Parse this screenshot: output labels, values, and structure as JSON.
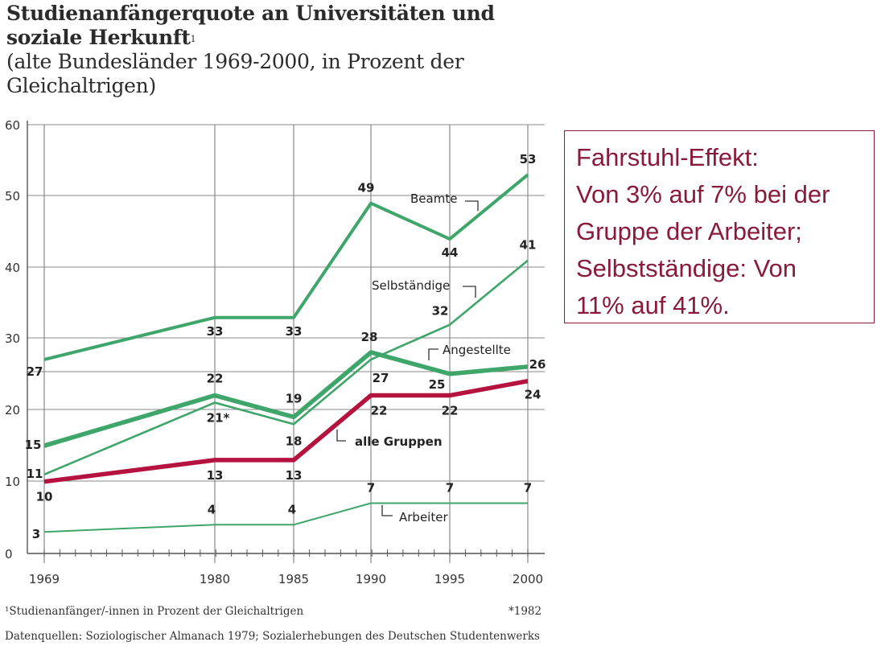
{
  "header": {
    "title_line1": "Studienanfängerquote an Universitäten und",
    "title_line2": "soziale Herkunft",
    "title_sup": "1",
    "subtitle_line1": "(alte Bundesländer 1969-2000, in Prozent der",
    "subtitle_line2": "Gleichaltrigen)"
  },
  "callout": {
    "lines": [
      "Fahrstuhl-Effekt:",
      "Von 3% auf 7% bei der",
      "Gruppe der Arbeiter;",
      "Selbstständige: Von",
      "11% auf 41%."
    ],
    "color": "#8b1a3a"
  },
  "footer": {
    "footnote": "¹Studienanfänger/-innen in Prozent der Gleichaltrigen",
    "star_note": "*1982",
    "source": "Datenquellen: Soziologischer Almanach 1979; Sozialerhebungen des Deutschen Studentenwerks"
  },
  "chart_data": {
    "type": "line",
    "x": [
      1969,
      1980,
      1985,
      1990,
      1995,
      2000
    ],
    "xticks": [
      "1969",
      "1980",
      "1985",
      "1990",
      "1995",
      "2000"
    ],
    "ylim": [
      0,
      60
    ],
    "yaxis_break": "between 30 and 40",
    "yticks": [
      "0",
      "10",
      "20",
      "30",
      "40",
      "50",
      "60"
    ],
    "grid": true,
    "colors": {
      "green": "#3fa66a",
      "red": "#b5123f",
      "axis": "#555555",
      "grid": "#888888"
    },
    "series": [
      {
        "name": "Beamte",
        "values": [
          27,
          33,
          33,
          49,
          44,
          53
        ],
        "labels": [
          "27",
          "33",
          "33",
          "49",
          "44",
          "53"
        ],
        "color": "#3fa66a",
        "style": "bold"
      },
      {
        "name": "Selbständige",
        "values": [
          11,
          21,
          18,
          27,
          32,
          41
        ],
        "labels": [
          "11",
          "21*",
          "18",
          "27",
          "32",
          "41"
        ],
        "color": "#3fa66a",
        "style": "medium"
      },
      {
        "name": "Angestellte",
        "values": [
          15,
          22,
          19,
          28,
          25,
          26
        ],
        "labels": [
          "15",
          "22",
          "19",
          "28",
          "25",
          "26"
        ],
        "color": "#3fa66a",
        "style": "heavy"
      },
      {
        "name": "alle Gruppen",
        "values": [
          10,
          13,
          13,
          22,
          22,
          24
        ],
        "labels": [
          "10",
          "13",
          "13",
          "22",
          "22",
          "24"
        ],
        "color": "#b5123f",
        "style": "heavy"
      },
      {
        "name": "Arbeiter",
        "values": [
          3,
          4,
          4,
          7,
          7,
          7
        ],
        "labels": [
          "3",
          "4",
          "4",
          "7",
          "7",
          "7"
        ],
        "color": "#3fa66a",
        "style": "thin"
      }
    ]
  }
}
